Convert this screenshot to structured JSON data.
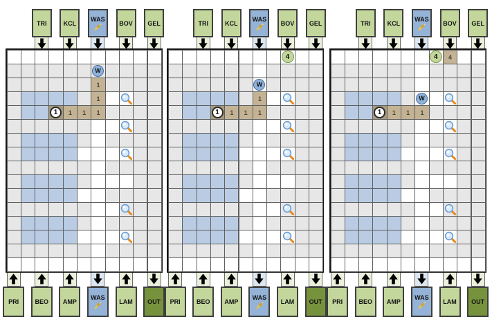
{
  "top_ports": [
    {
      "label": "TRI",
      "col": 3,
      "style": "green",
      "arrow": "down",
      "brush": false
    },
    {
      "label": "KCL",
      "col": 5,
      "style": "green",
      "arrow": "down",
      "brush": false
    },
    {
      "label": "WAS",
      "col": 7,
      "style": "blue",
      "arrow": "down",
      "brush": true
    },
    {
      "label": "BOV",
      "col": 9,
      "style": "green",
      "arrow": "down",
      "brush": false
    },
    {
      "label": "GEL",
      "col": 11,
      "style": "green",
      "arrow": "down",
      "brush": false
    }
  ],
  "bottom_ports": [
    {
      "label": "PRI",
      "col": 1,
      "style": "green",
      "arrow": "up",
      "brush": false
    },
    {
      "label": "BEO",
      "col": 3,
      "style": "green",
      "arrow": "up",
      "brush": false
    },
    {
      "label": "AMP",
      "col": 5,
      "style": "green",
      "arrow": "up",
      "brush": false
    },
    {
      "label": "WAS",
      "col": 7,
      "style": "blue",
      "arrow": "down",
      "brush": true
    },
    {
      "label": "LAM",
      "col": 9,
      "style": "green",
      "arrow": "up",
      "brush": false
    },
    {
      "label": "OUT",
      "col": 11,
      "style": "darkgreen",
      "arrow": "down",
      "brush": false
    }
  ],
  "grid": {
    "rows": 16,
    "cols": 11,
    "base_rows": [
      "WWWWWWWWWWW",
      "GGGGGGGGGGG",
      "GGGGGGGGGGG",
      "GBBBBGWWWGG",
      "GBBBBWWGGGG",
      "GGGGGGWWWGG",
      "GBBBBGWGGGG",
      "GBBBBWWWWGG",
      "GGGGGGWGGGG",
      "GBBBBGWWWGG",
      "GBBBBWWGGGG",
      "GGGGGGWWGGG",
      "GBBBBGWGGGG",
      "GBBBBWWWWGG",
      "GGGGGGWGGGG",
      "WWWWWWWWWWW"
    ],
    "magnifiers": [
      [
        4,
        9
      ],
      [
        6,
        9
      ],
      [
        8,
        9
      ],
      [
        12,
        9
      ],
      [
        14,
        9
      ]
    ]
  },
  "panels": [
    {
      "name": "state-1",
      "cells": [
        {
          "r": 3,
          "c": 7,
          "t": "trail",
          "text": "1"
        },
        {
          "r": 4,
          "c": 7,
          "t": "trail",
          "text": "1"
        },
        {
          "r": 5,
          "c": 4,
          "t": "traildark",
          "text": ""
        },
        {
          "r": 5,
          "c": 5,
          "t": "trail",
          "text": "1"
        },
        {
          "r": 5,
          "c": 6,
          "t": "trail",
          "text": "1"
        },
        {
          "r": 5,
          "c": 7,
          "t": "trail",
          "text": "1"
        }
      ],
      "tokens": [
        {
          "r": 2,
          "c": 7,
          "t": "worker",
          "text": "W"
        },
        {
          "r": 5,
          "c": 4,
          "t": "disc",
          "text": "1"
        }
      ]
    },
    {
      "name": "state-2",
      "cells": [
        {
          "r": 2,
          "c": 7,
          "t": "white",
          "text": ""
        },
        {
          "r": 3,
          "c": 7,
          "t": "white",
          "text": ""
        },
        {
          "r": 4,
          "c": 7,
          "t": "trail",
          "text": "1"
        },
        {
          "r": 5,
          "c": 4,
          "t": "traildark",
          "text": ""
        },
        {
          "r": 5,
          "c": 5,
          "t": "trail",
          "text": "1"
        },
        {
          "r": 5,
          "c": 6,
          "t": "trail",
          "text": "1"
        },
        {
          "r": 5,
          "c": 7,
          "t": "trail",
          "text": "1"
        }
      ],
      "tokens": [
        {
          "r": 1,
          "c": 9,
          "t": "seed",
          "text": "4"
        },
        {
          "r": 3,
          "c": 7,
          "t": "worker",
          "text": "W"
        },
        {
          "r": 5,
          "c": 4,
          "t": "disc",
          "text": "1"
        }
      ]
    },
    {
      "name": "state-3",
      "cells": [
        {
          "r": 1,
          "c": 9,
          "t": "trail",
          "text": "4"
        },
        {
          "r": 2,
          "c": 7,
          "t": "white",
          "text": ""
        },
        {
          "r": 3,
          "c": 7,
          "t": "white",
          "text": ""
        },
        {
          "r": 4,
          "c": 7,
          "t": "white",
          "text": ""
        },
        {
          "r": 5,
          "c": 4,
          "t": "traildark",
          "text": ""
        },
        {
          "r": 5,
          "c": 5,
          "t": "trail",
          "text": "1"
        },
        {
          "r": 5,
          "c": 6,
          "t": "trail",
          "text": "1"
        },
        {
          "r": 5,
          "c": 7,
          "t": "trail",
          "text": "1"
        }
      ],
      "tokens": [
        {
          "r": 1,
          "c": 8,
          "t": "seed",
          "text": "4"
        },
        {
          "r": 4,
          "c": 7,
          "t": "worker",
          "text": "W"
        },
        {
          "r": 5,
          "c": 4,
          "t": "disc",
          "text": "1"
        }
      ]
    }
  ],
  "colors": {
    "port_green": "#c3d69b",
    "port_blue": "#95b3d7",
    "port_dark_green": "#76923c",
    "stub_green": "#eaf0dc",
    "stub_blue": "#dde7f2",
    "cell_gray": "#e7e7e7",
    "cell_blue": "#b9cce4",
    "cell_white": "#ffffff",
    "trail_tan": "#c3b394",
    "trail_dark_tan": "#a69a7d",
    "grid_line": "#5f5f5f",
    "worker_fill": "#8fb3da",
    "magnifier_lens": "#d8eafc",
    "magnifier_handle": "#e8891c",
    "arrow_black": "#000000"
  }
}
